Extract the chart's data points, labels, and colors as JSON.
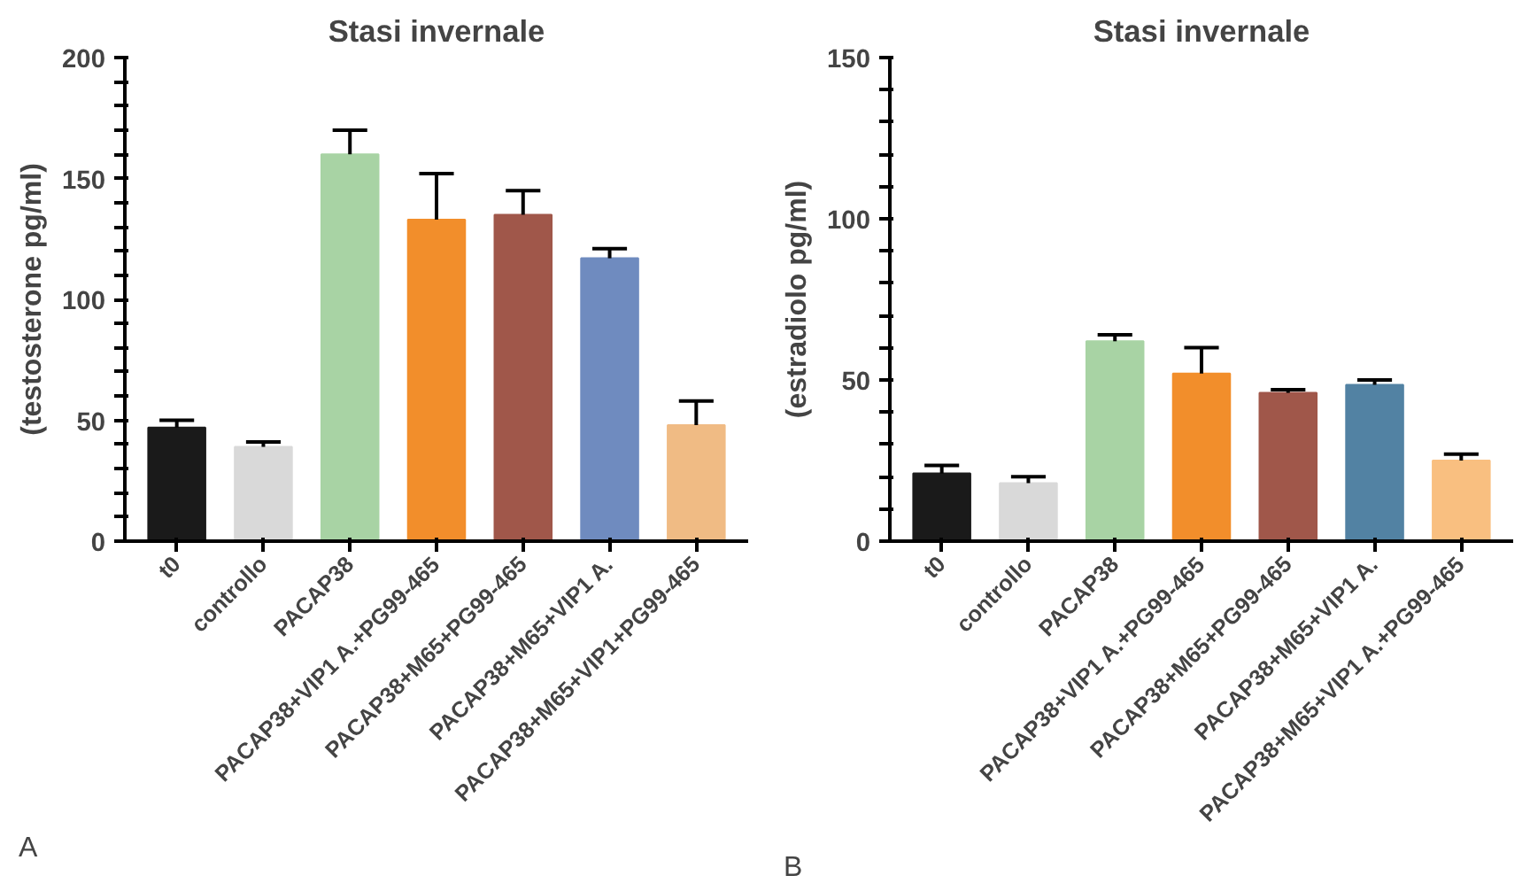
{
  "chart_data": [
    {
      "type": "bar",
      "title": "Stasi invernale",
      "ylabel": "(testosterone pg/ml)",
      "categories": [
        "t0",
        "controllo",
        "PACAP38",
        "PACAP38+VIP1 A.+PG99-465",
        "PACAP38+M65+PG99-465",
        "PACAP38+M65+VIP1 A.",
        "PACAP38+M65+VIP1+PG99-465"
      ],
      "values": [
        47,
        39,
        160,
        133,
        135,
        117,
        48
      ],
      "colors": [
        "#1a1a1a",
        "#d9d9d9",
        "#a8d3a4",
        "#f28e2b",
        "#a0574a",
        "#6f8bbf",
        "#f0bb84"
      ],
      "errors": [
        [
          47,
          50
        ],
        [
          39,
          41
        ],
        [
          160,
          170
        ],
        [
          133,
          152
        ],
        [
          135,
          145
        ],
        [
          117,
          121
        ],
        [
          48,
          58
        ]
      ],
      "ylim": [
        0,
        200
      ],
      "yticks": [
        0,
        {
          "value": 10,
          "label": null
        },
        {
          "value": 20,
          "label": null
        },
        {
          "value": 30,
          "label": null
        },
        {
          "value": 40,
          "label": null
        },
        50,
        {
          "value": 60,
          "label": null
        },
        {
          "value": 70,
          "label": null
        },
        {
          "value": 80,
          "label": null
        },
        {
          "value": 90,
          "label": null
        },
        100,
        {
          "value": 110,
          "label": null
        },
        {
          "value": 120,
          "label": null
        },
        {
          "value": 130,
          "label": null
        },
        {
          "value": 140,
          "label": null
        },
        150,
        {
          "value": 160,
          "label": null
        },
        {
          "value": 170,
          "label": null
        },
        {
          "value": 180,
          "label": null
        },
        {
          "value": 190,
          "label": null
        },
        200
      ],
      "annotations": [
        "A"
      ]
    },
    {
      "type": "bar",
      "title": "Stasi invernale",
      "ylabel": "(estradiolo pg/ml)",
      "categories": [
        "t0",
        "controllo",
        "PACAP38",
        "PACAP38+VIP1 A.+PG99-465",
        "PACAP38+M65+PG99-465",
        "PACAP38+M65+VIP1 A.",
        "PACAP38+M65+VIP1 A.+PG99-465"
      ],
      "values": [
        21,
        18,
        62,
        52,
        46,
        48.5,
        25
      ],
      "colors": [
        "#1a1a1a",
        "#d9d9d9",
        "#a8d3a4",
        "#f28e2b",
        "#a0574a",
        "#5282a3",
        "#f9bf80"
      ],
      "errors": [
        [
          21,
          23.5
        ],
        [
          18,
          20
        ],
        [
          62,
          64
        ],
        [
          52,
          60
        ],
        [
          46,
          47
        ],
        [
          48.5,
          50
        ],
        [
          25,
          27
        ]
      ],
      "ylim": [
        0,
        150
      ],
      "yticks": [
        0,
        {
          "value": 10,
          "label": null
        },
        {
          "value": 20,
          "label": null
        },
        {
          "value": 30,
          "label": null
        },
        {
          "value": 40,
          "label": null
        },
        50,
        {
          "value": 60,
          "label": null
        },
        {
          "value": 70,
          "label": null
        },
        {
          "value": 80,
          "label": null
        },
        {
          "value": 90,
          "label": null
        },
        100,
        {
          "value": 110,
          "label": null
        },
        {
          "value": 120,
          "label": null
        },
        {
          "value": 130,
          "label": null
        },
        {
          "value": 140,
          "label": null
        },
        150
      ],
      "annotations": [
        "B"
      ]
    }
  ]
}
